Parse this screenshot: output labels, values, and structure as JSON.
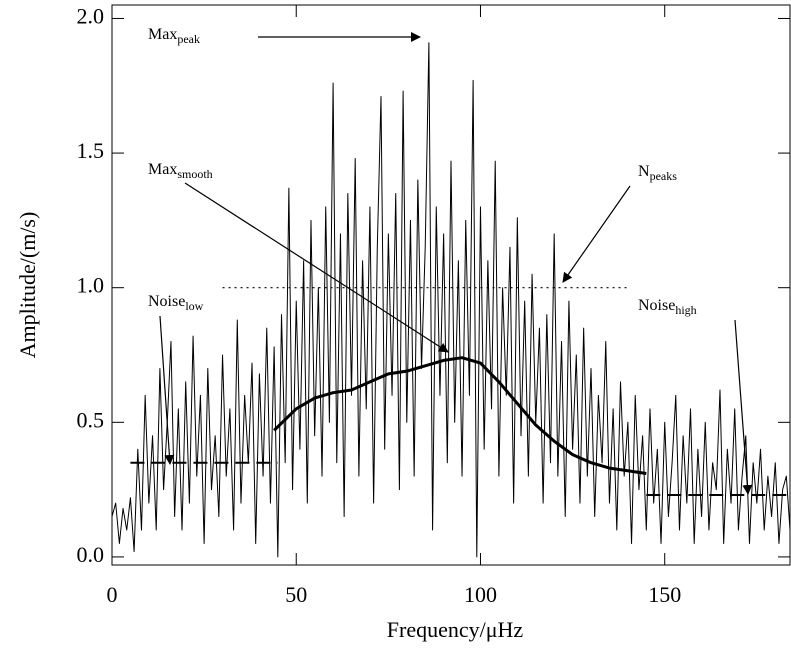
{
  "chart_data": {
    "type": "line",
    "x_label": "Frequency/μHz",
    "y_label": "Amplitude/(m/s)",
    "xlim": [
      0,
      184
    ],
    "ylim": [
      -0.03,
      2.05
    ],
    "xticks": [
      0,
      50,
      100,
      150
    ],
    "yticks": [
      {
        "value": 0,
        "label": "0.0"
      },
      {
        "value": 0.5,
        "label": "0.5"
      },
      {
        "value": 1,
        "label": "1.0"
      },
      {
        "value": 1.5,
        "label": "1.5"
      },
      {
        "value": 2,
        "label": "2.0"
      }
    ],
    "series": [
      {
        "color": "#000000",
        "style": "solid",
        "width": 1,
        "x": [
          0,
          1,
          2,
          3,
          4,
          5,
          6,
          7,
          8,
          9,
          10,
          11,
          12,
          13,
          14,
          15,
          16,
          17,
          18,
          19,
          20,
          21,
          22,
          23,
          24,
          25,
          26,
          27,
          28,
          29,
          30,
          31,
          32,
          33,
          34,
          35,
          36,
          37,
          38,
          39,
          40,
          41,
          42,
          43,
          44,
          45,
          46,
          47,
          48,
          49,
          50,
          51,
          52,
          53,
          54,
          55,
          56,
          57,
          58,
          59,
          60,
          61,
          62,
          63,
          64,
          65,
          66,
          67,
          68,
          69,
          70,
          71,
          72,
          73,
          74,
          75,
          76,
          77,
          78,
          79,
          80,
          81,
          82,
          83,
          84,
          85,
          86,
          87,
          88,
          89,
          90,
          91,
          92,
          93,
          94,
          95,
          96,
          97,
          98,
          99,
          100,
          101,
          102,
          103,
          104,
          105,
          106,
          107,
          108,
          109,
          110,
          111,
          112,
          113,
          114,
          115,
          116,
          117,
          118,
          119,
          120,
          121,
          122,
          123,
          124,
          125,
          126,
          127,
          128,
          129,
          130,
          131,
          132,
          133,
          134,
          135,
          136,
          137,
          138,
          139,
          140,
          141,
          142,
          143,
          144,
          145,
          146,
          147,
          148,
          149,
          150,
          151,
          152,
          153,
          154,
          155,
          156,
          157,
          158,
          159,
          160,
          161,
          162,
          163,
          164,
          165,
          166,
          167,
          168,
          169,
          170,
          171,
          172,
          173,
          174,
          175,
          176,
          177,
          178,
          179,
          180,
          181,
          182,
          183,
          184
        ],
        "values": [
          0.15,
          0.2,
          0.05,
          0.18,
          0.1,
          0.22,
          0.02,
          0.4,
          0.1,
          0.6,
          0.2,
          0.45,
          0.1,
          0.7,
          0.25,
          0.5,
          0.8,
          0.15,
          0.55,
          0.1,
          0.65,
          0.2,
          0.82,
          0.3,
          0.6,
          0.05,
          0.7,
          0.25,
          0.45,
          0.15,
          0.75,
          0.3,
          0.55,
          0.1,
          0.88,
          0.2,
          0.6,
          0.35,
          0.72,
          0.05,
          0.68,
          0.3,
          0.85,
          0.2,
          0.78,
          0.0,
          0.9,
          0.35,
          1.37,
          0.25,
          0.95,
          0.4,
          1.1,
          0.2,
          1.25,
          0.45,
          1.0,
          0.3,
          1.3,
          0.5,
          1.76,
          0.35,
          1.2,
          0.15,
          1.35,
          0.6,
          1.48,
          0.3,
          1.1,
          0.55,
          1.3,
          0.2,
          1.15,
          1.71,
          0.4,
          1.2,
          0.6,
          1.35,
          0.25,
          1.73,
          0.5,
          1.25,
          0.3,
          1.4,
          0.7,
          1.15,
          1.91,
          0.1,
          1.3,
          0.6,
          1.2,
          0.35,
          1.47,
          0.5,
          1.1,
          0.3,
          1.25,
          0.6,
          1.77,
          0.0,
          1.3,
          0.4,
          1.1,
          0.55,
          1.47,
          0.3,
          1.0,
          0.6,
          1.15,
          0.2,
          1.26,
          0.45,
          0.95,
          0.3,
          1.05,
          0.5,
          0.85,
          0.2,
          0.9,
          0.35,
          1.2,
          0.3,
          0.8,
          0.15,
          0.95,
          0.4,
          0.75,
          0.2,
          0.85,
          0.3,
          0.7,
          0.15,
          0.6,
          0.35,
          0.8,
          0.2,
          0.55,
          0.1,
          0.65,
          0.3,
          0.5,
          0.05,
          0.6,
          0.25,
          0.45,
          0.1,
          0.55,
          0.2,
          0.4,
          0.05,
          0.5,
          0.15,
          0.35,
          0.6,
          0.1,
          0.45,
          0.2,
          0.55,
          0.05,
          0.4,
          0.15,
          0.5,
          0.1,
          0.35,
          0.25,
          0.62,
          0.05,
          0.4,
          0.2,
          0.55,
          0.1,
          0.3,
          0.45,
          0.05,
          0.35,
          0.2,
          0.4,
          0.1,
          0.3,
          0.15,
          0.35,
          0.05,
          0.25,
          0.3,
          0.1
        ]
      },
      {
        "color": "#000000",
        "style": "solid",
        "width": 3,
        "x": [
          44,
          50,
          55,
          60,
          65,
          70,
          75,
          80,
          85,
          90,
          95,
          100,
          105,
          110,
          115,
          120,
          125,
          130,
          135,
          140,
          145
        ],
        "values": [
          0.47,
          0.55,
          0.59,
          0.61,
          0.62,
          0.65,
          0.68,
          0.69,
          0.71,
          0.73,
          0.74,
          0.72,
          0.65,
          0.57,
          0.49,
          0.43,
          0.38,
          0.35,
          0.33,
          0.32,
          0.31
        ]
      },
      {
        "color": "#000000",
        "style": "dashed",
        "width": 2,
        "x": [
          5,
          45
        ],
        "values": [
          0.35,
          0.35
        ]
      },
      {
        "color": "#000000",
        "style": "dashed",
        "width": 2,
        "x": [
          145,
          184
        ],
        "values": [
          0.23,
          0.23
        ]
      },
      {
        "color": "#000000",
        "style": "dotted",
        "width": 1.2,
        "x": [
          30,
          140
        ],
        "values": [
          1,
          1
        ]
      }
    ],
    "annotations": [
      {
        "text": "Max",
        "sub": "peak"
      },
      {
        "text": "Max",
        "sub": "smooth"
      },
      {
        "text": "N",
        "sub": "peaks"
      },
      {
        "text": "Noise",
        "sub": "low"
      },
      {
        "text": "Noise",
        "sub": "high"
      }
    ]
  }
}
